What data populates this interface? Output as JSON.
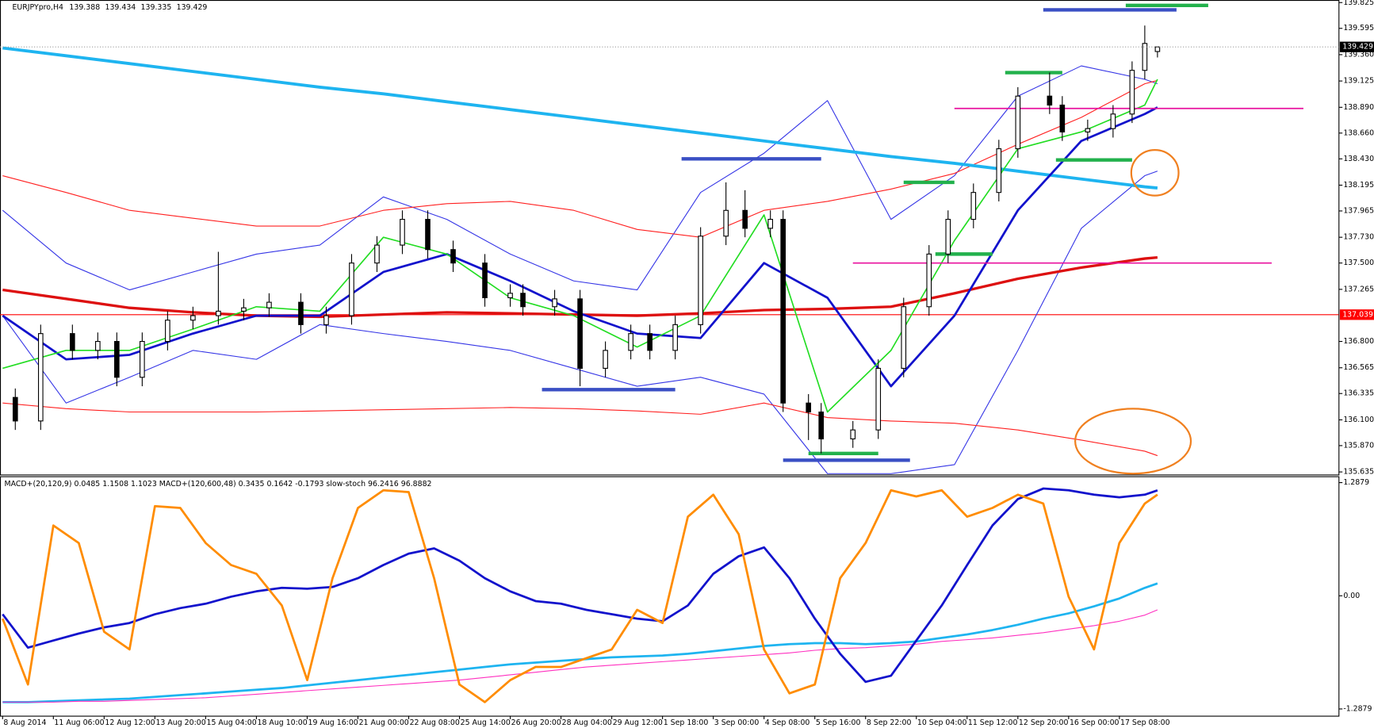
{
  "chart_data": [
    {
      "type": "candlestick",
      "title": "EURJPYpro,H4",
      "xlim": [
        -0.41,
        210.6
      ],
      "ylim": [
        135.612,
        139.848
      ],
      "yticks": [
        139.825,
        139.595,
        {
          "value": 139.36,
          "label": "139.360"
        },
        139.125,
        {
          "value": 138.89,
          "label": "138.890"
        },
        {
          "value": 138.66,
          "label": "138.660"
        },
        {
          "value": 138.43,
          "label": "138.430"
        },
        138.195,
        137.965,
        {
          "value": 137.73,
          "label": "137.730"
        },
        {
          "value": 137.5,
          "label": "137.500"
        },
        137.265,
        {
          "value": 136.8,
          "label": "136.800"
        },
        136.565,
        136.335,
        {
          "value": 136.1,
          "label": "136.100"
        },
        {
          "value": 135.87,
          "label": "135.870"
        },
        135.635
      ],
      "level_line": 137.039,
      "level_color": "#ff0000",
      "candles": {
        "x": [
          2,
          6,
          11,
          15,
          18,
          22,
          26,
          30,
          34,
          38,
          42,
          47,
          51,
          55,
          59,
          63,
          67,
          71,
          76,
          80,
          82,
          87,
          91,
          95,
          99,
          102,
          106,
          110,
          114,
          117,
          121,
          123,
          127,
          129,
          134,
          138,
          142,
          146,
          149,
          153,
          157,
          160,
          165,
          167,
          171,
          175,
          178,
          180,
          182
        ],
        "open": [
          136.3,
          136.09,
          136.87,
          136.72,
          136.8,
          136.48,
          136.8,
          136.99,
          137.03,
          137.07,
          137.1,
          137.15,
          136.95,
          137.03,
          137.5,
          137.66,
          137.89,
          137.62,
          137.5,
          137.19,
          137.23,
          137.11,
          137.18,
          136.56,
          136.72,
          136.87,
          136.72,
          136.95,
          137.74,
          137.97,
          137.81,
          137.89,
          136.25,
          136.17,
          135.93,
          136.01,
          136.56,
          137.11,
          137.58,
          137.89,
          138.13,
          138.52,
          138.99,
          138.91,
          138.67,
          138.7,
          138.83,
          139.22,
          139.388
        ],
        "high": [
          136.38,
          136.95,
          136.95,
          136.88,
          136.88,
          136.88,
          137.07,
          137.11,
          137.6,
          137.18,
          137.23,
          137.23,
          137.11,
          137.58,
          137.74,
          137.97,
          137.97,
          137.7,
          137.58,
          137.31,
          137.31,
          137.26,
          137.26,
          136.8,
          136.95,
          136.95,
          137.03,
          137.82,
          138.22,
          138.15,
          137.97,
          137.97,
          136.33,
          136.25,
          136.09,
          136.64,
          137.19,
          137.66,
          137.97,
          138.21,
          138.6,
          139.07,
          139.2,
          138.99,
          138.78,
          138.91,
          139.3,
          139.62,
          139.434
        ],
        "low": [
          136.01,
          136.01,
          136.64,
          136.64,
          136.4,
          136.4,
          136.72,
          136.91,
          136.95,
          136.99,
          137.02,
          136.87,
          136.87,
          136.95,
          137.42,
          137.58,
          137.54,
          137.42,
          137.11,
          137.11,
          137.03,
          137.03,
          136.4,
          136.48,
          136.64,
          136.64,
          136.64,
          136.87,
          137.66,
          137.73,
          137.73,
          136.17,
          135.92,
          135.8,
          135.85,
          135.93,
          136.48,
          137.03,
          137.5,
          137.81,
          138.05,
          138.44,
          138.83,
          138.59,
          138.59,
          138.62,
          138.75,
          139.14,
          139.335
        ],
        "close": [
          136.09,
          136.87,
          136.72,
          136.8,
          136.48,
          136.8,
          136.99,
          137.03,
          137.07,
          137.1,
          137.15,
          136.95,
          137.03,
          137.5,
          137.66,
          137.89,
          137.62,
          137.5,
          137.19,
          137.23,
          137.11,
          137.18,
          136.56,
          136.72,
          136.87,
          136.72,
          136.95,
          137.74,
          137.97,
          137.81,
          137.89,
          136.25,
          136.17,
          135.93,
          136.01,
          136.56,
          137.11,
          137.58,
          137.89,
          138.13,
          138.52,
          138.99,
          138.91,
          138.67,
          138.7,
          138.83,
          139.22,
          139.46,
          139.429
        ]
      },
      "x": [
        0,
        10,
        20,
        30,
        40,
        50,
        60,
        70,
        80,
        90,
        100,
        110,
        120,
        130,
        140,
        150,
        160,
        170,
        180,
        182
      ],
      "series": [
        {
          "color": "#3535e6",
          "values": [
            137.97,
            137.5,
            137.26,
            137.42,
            137.58,
            137.66,
            138.09,
            137.89,
            137.58,
            137.34,
            137.26,
            138.13,
            138.48,
            138.95,
            137.89,
            138.28,
            138.99,
            139.26,
            139.14,
            139.1
          ]
        },
        {
          "color": "#3535e6",
          "values": [
            137.03,
            136.25,
            136.48,
            136.72,
            136.64,
            136.95,
            136.87,
            136.8,
            136.72,
            136.56,
            136.4,
            136.48,
            136.33,
            135.62,
            135.62,
            135.7,
            136.72,
            137.81,
            138.28,
            138.32
          ]
        },
        {
          "color": "#ff2020",
          "values": [
            138.28,
            138.13,
            137.97,
            137.9,
            137.83,
            137.83,
            137.97,
            138.03,
            138.05,
            137.97,
            137.8,
            137.73,
            137.97,
            138.05,
            138.16,
            138.3,
            138.56,
            138.8,
            139.1,
            139.13
          ]
        },
        {
          "color": "#ff2020",
          "values": [
            136.25,
            136.2,
            136.17,
            136.17,
            136.17,
            136.18,
            136.19,
            136.2,
            136.21,
            136.2,
            136.18,
            136.15,
            136.25,
            136.12,
            136.09,
            136.07,
            136.01,
            135.92,
            135.82,
            135.78
          ]
        },
        {
          "color": "#1eb4f0",
          "values": [
            139.42,
            139.35,
            139.28,
            139.21,
            139.14,
            139.07,
            139.01,
            138.94,
            138.87,
            138.8,
            138.73,
            138.66,
            138.59,
            138.52,
            138.45,
            138.39,
            138.32,
            138.25,
            138.18,
            138.17
          ]
        },
        {
          "color": "#dd1010",
          "values": [
            137.26,
            137.18,
            137.1,
            137.06,
            137.03,
            137.02,
            137.04,
            137.06,
            137.05,
            137.04,
            137.03,
            137.05,
            137.08,
            137.09,
            137.11,
            137.23,
            137.36,
            137.46,
            137.54,
            137.55
          ]
        },
        {
          "color": "#1212cc",
          "values": [
            137.03,
            136.64,
            136.68,
            136.87,
            137.03,
            137.03,
            137.42,
            137.58,
            137.34,
            137.07,
            136.87,
            136.83,
            137.5,
            137.19,
            136.4,
            137.03,
            137.97,
            138.59,
            138.83,
            138.89
          ]
        },
        {
          "color": "#22dd22",
          "values": [
            136.56,
            136.72,
            136.72,
            136.91,
            137.11,
            137.07,
            137.73,
            137.58,
            137.19,
            137.03,
            136.75,
            137.03,
            137.93,
            136.17,
            136.72,
            137.7,
            138.52,
            138.67,
            138.91,
            139.14
          ]
        }
      ],
      "levels": [
        {
          "value": 139.76,
          "from": 164,
          "to": 185,
          "color": "#3a4fc4"
        },
        {
          "value": 139.8,
          "from": 177,
          "to": 190,
          "color": "#22b14c"
        },
        {
          "value": 139.2,
          "from": 158,
          "to": 167,
          "color": "#22b14c"
        },
        {
          "value": 138.88,
          "from": 150,
          "to": 205,
          "color": "#e8109e"
        },
        {
          "value": 138.43,
          "from": 107,
          "to": 129,
          "color": "#3a4fc4"
        },
        {
          "value": 138.42,
          "from": 166,
          "to": 178,
          "color": "#22b14c"
        },
        {
          "value": 138.22,
          "from": 142,
          "to": 150,
          "color": "#22b14c"
        },
        {
          "value": 137.58,
          "from": 147,
          "to": 156,
          "color": "#22b14c"
        },
        {
          "value": 137.5,
          "from": 134,
          "to": 200,
          "color": "#e8109e"
        },
        {
          "value": 136.37,
          "from": 85,
          "to": 106,
          "color": "#3a4fc4"
        },
        {
          "value": 135.8,
          "from": 127,
          "to": 138,
          "color": "#22b14c"
        },
        {
          "value": 135.74,
          "from": 123,
          "to": 143,
          "color": "#3a4fc4"
        }
      ]
    },
    {
      "type": "line",
      "title": "MACD+(20,120,9) 0.0485 1.1508 1.1023  MACD+(120,600,48) 0.3435 0.1642 -0.1793  slow-stoch 96.2416 96.8882",
      "xlim": [
        -0.41,
        210.6
      ],
      "ylim": [
        -1.365,
        1.36
      ],
      "yticks": [
        1.2879,
        {
          "value": 0,
          "label": "0.00"
        },
        -1.2879
      ],
      "xticks": [
        {
          "value": 0,
          "label": "8 Aug 2014"
        },
        {
          "value": 8,
          "label": "11 Aug 06:00"
        },
        {
          "value": 16,
          "label": "12 Aug 12:00"
        },
        {
          "value": 24,
          "label": "13 Aug 20:00"
        },
        {
          "value": 32,
          "label": "15 Aug 04:00"
        },
        {
          "value": 40,
          "label": "18 Aug 10:00"
        },
        {
          "value": 48,
          "label": "19 Aug 16:00"
        },
        {
          "value": 56,
          "label": "21 Aug 00:00"
        },
        {
          "value": 64,
          "label": "22 Aug 08:00"
        },
        {
          "value": 72,
          "label": "25 Aug 14:00"
        },
        {
          "value": 80,
          "label": "26 Aug 20:00"
        },
        {
          "value": 88,
          "label": "28 Aug 04:00"
        },
        {
          "value": 96,
          "label": "29 Aug 12:00"
        },
        {
          "value": 104,
          "label": "1 Sep 18:00"
        },
        {
          "value": 112,
          "label": "3 Sep 00:00"
        },
        {
          "value": 120,
          "label": "4 Sep 08:00"
        },
        {
          "value": 128,
          "label": "5 Sep 16:00"
        },
        {
          "value": 136,
          "label": "8 Sep 22:00"
        },
        {
          "value": 144,
          "label": "10 Sep 04:00"
        },
        {
          "value": 152,
          "label": "11 Sep 12:00"
        },
        {
          "value": 160,
          "label": "12 Sep 20:00"
        },
        {
          "value": 168,
          "label": "16 Sep 00:00"
        },
        {
          "value": 176,
          "label": "17 Sep 08:00"
        }
      ],
      "x": [
        0,
        4,
        8,
        12,
        16,
        20,
        24,
        28,
        32,
        36,
        40,
        44,
        48,
        52,
        56,
        60,
        64,
        68,
        72,
        76,
        80,
        84,
        88,
        92,
        96,
        100,
        104,
        108,
        112,
        116,
        120,
        124,
        128,
        132,
        136,
        140,
        144,
        148,
        152,
        156,
        160,
        164,
        168,
        172,
        176,
        180,
        182
      ],
      "series": [
        {
          "color": "#1eb4f0",
          "values": [
            -1.21,
            -1.21,
            -1.2,
            -1.19,
            -1.18,
            -1.17,
            -1.15,
            -1.13,
            -1.11,
            -1.09,
            -1.07,
            -1.05,
            -1.02,
            -0.99,
            -0.96,
            -0.93,
            -0.9,
            -0.87,
            -0.84,
            -0.81,
            -0.78,
            -0.76,
            -0.74,
            -0.72,
            -0.7,
            -0.69,
            -0.68,
            -0.66,
            -0.63,
            -0.6,
            -0.57,
            -0.55,
            -0.54,
            -0.54,
            -0.55,
            -0.54,
            -0.52,
            -0.48,
            -0.44,
            -0.39,
            -0.33,
            -0.26,
            -0.2,
            -0.12,
            -0.03,
            0.09,
            0.14
          ]
        },
        {
          "color": "#ff30c0",
          "values": [
            -1.21,
            -1.21,
            -1.21,
            -1.2,
            -1.2,
            -1.19,
            -1.18,
            -1.17,
            -1.16,
            -1.14,
            -1.12,
            -1.1,
            -1.08,
            -1.06,
            -1.04,
            -1.02,
            -1.0,
            -0.98,
            -0.96,
            -0.93,
            -0.9,
            -0.87,
            -0.84,
            -0.81,
            -0.79,
            -0.77,
            -0.75,
            -0.73,
            -0.71,
            -0.69,
            -0.67,
            -0.65,
            -0.62,
            -0.6,
            -0.59,
            -0.57,
            -0.55,
            -0.52,
            -0.5,
            -0.48,
            -0.45,
            -0.42,
            -0.38,
            -0.34,
            -0.29,
            -0.22,
            -0.16
          ]
        },
        {
          "color": "#1212cc",
          "values": [
            -0.21,
            -0.59,
            -0.51,
            -0.43,
            -0.36,
            -0.31,
            -0.21,
            -0.14,
            -0.09,
            -0.01,
            0.05,
            0.09,
            0.08,
            0.1,
            0.2,
            0.35,
            0.48,
            0.54,
            0.4,
            0.2,
            0.05,
            -0.06,
            -0.09,
            -0.16,
            -0.21,
            -0.26,
            -0.29,
            -0.11,
            0.25,
            0.45,
            0.55,
            0.2,
            -0.26,
            -0.66,
            -0.98,
            -0.91,
            -0.51,
            -0.11,
            0.35,
            0.8,
            1.1,
            1.22,
            1.2,
            1.15,
            1.12,
            1.15,
            1.2
          ]
        },
        {
          "color": "#ff8c00",
          "values": [
            -0.26,
            -1.01,
            0.8,
            0.6,
            -0.41,
            -0.61,
            1.02,
            1.0,
            0.6,
            0.35,
            0.25,
            -0.11,
            -0.96,
            0.2,
            1.0,
            1.2,
            1.18,
            0.2,
            -1.01,
            -1.21,
            -0.96,
            -0.81,
            -0.81,
            -0.71,
            -0.61,
            -0.16,
            -0.31,
            0.9,
            1.15,
            0.7,
            -0.61,
            -1.11,
            -1.01,
            0.2,
            0.6,
            1.2,
            1.13,
            1.2,
            0.9,
            1.0,
            1.15,
            1.05,
            -0.01,
            -0.61,
            0.6,
            1.05,
            1.15
          ]
        }
      ]
    }
  ]
}
